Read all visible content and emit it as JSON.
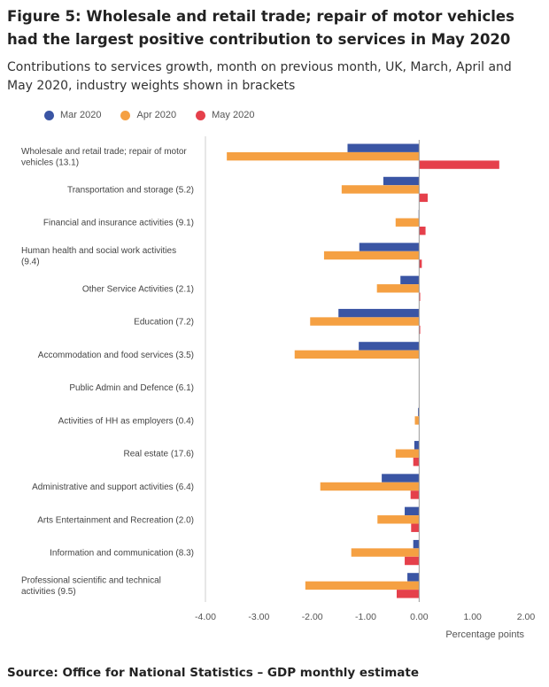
{
  "title": "Figure 5: Wholesale and retail trade; repair of motor vehicles had the largest positive contribution to services in May 2020",
  "subtitle": "Contributions to services growth, month on previous month, UK, March, April and May 2020, industry weights shown in brackets",
  "source": "Source: Office for National Statistics – GDP monthly estimate",
  "chart_data": {
    "type": "bar",
    "orientation": "horizontal",
    "categories": [
      [
        "Wholesale and retail trade; repair of motor",
        "vehicles (13.1)"
      ],
      [
        "Transportation and storage (5.2)"
      ],
      [
        "Financial and insurance activities (9.1)"
      ],
      [
        "Human health and social work activities",
        "(9.4)"
      ],
      [
        "Other Service Activities (2.1)"
      ],
      [
        "Education (7.2)"
      ],
      [
        "Accommodation and food services (3.5)"
      ],
      [
        "Public Admin and Defence (6.1)"
      ],
      [
        "Activities of HH as employers (0.4)"
      ],
      [
        "Real estate (17.6)"
      ],
      [
        "Administrative and support activities (6.4)"
      ],
      [
        "Arts Entertainment and Recreation (2.0)"
      ],
      [
        "Information and communication (8.3)"
      ],
      [
        "Professional scientific and technical",
        "activities (9.5)"
      ]
    ],
    "series": [
      {
        "name": "Mar 2020",
        "color": "#3a55a4",
        "values": [
          -1.34,
          -0.67,
          -0.01,
          -1.12,
          -0.35,
          -1.51,
          -1.13,
          0,
          -0.02,
          -0.09,
          -0.7,
          -0.27,
          -0.11,
          -0.22
        ]
      },
      {
        "name": "Apr 2020",
        "color": "#f5a042",
        "values": [
          -3.6,
          -1.45,
          -0.44,
          -1.78,
          -0.79,
          -2.04,
          -2.33,
          0,
          -0.08,
          -0.44,
          -1.85,
          -0.78,
          -1.27,
          -2.13
        ]
      },
      {
        "name": "May 2020",
        "color": "#e5404b",
        "values": [
          1.5,
          0.16,
          0.12,
          0.05,
          0.02,
          0.02,
          0,
          0,
          0,
          -0.11,
          -0.16,
          -0.15,
          -0.27,
          -0.42
        ]
      }
    ],
    "xlim": [
      -4,
      2
    ],
    "xticks": [
      "-4.00",
      "-3.00",
      "-2.00",
      "-1.00",
      "0.00",
      "1.00",
      "2.00"
    ],
    "xlabel": "Percentage points",
    "ylabel": "",
    "legend": "top-left",
    "grid": false
  }
}
